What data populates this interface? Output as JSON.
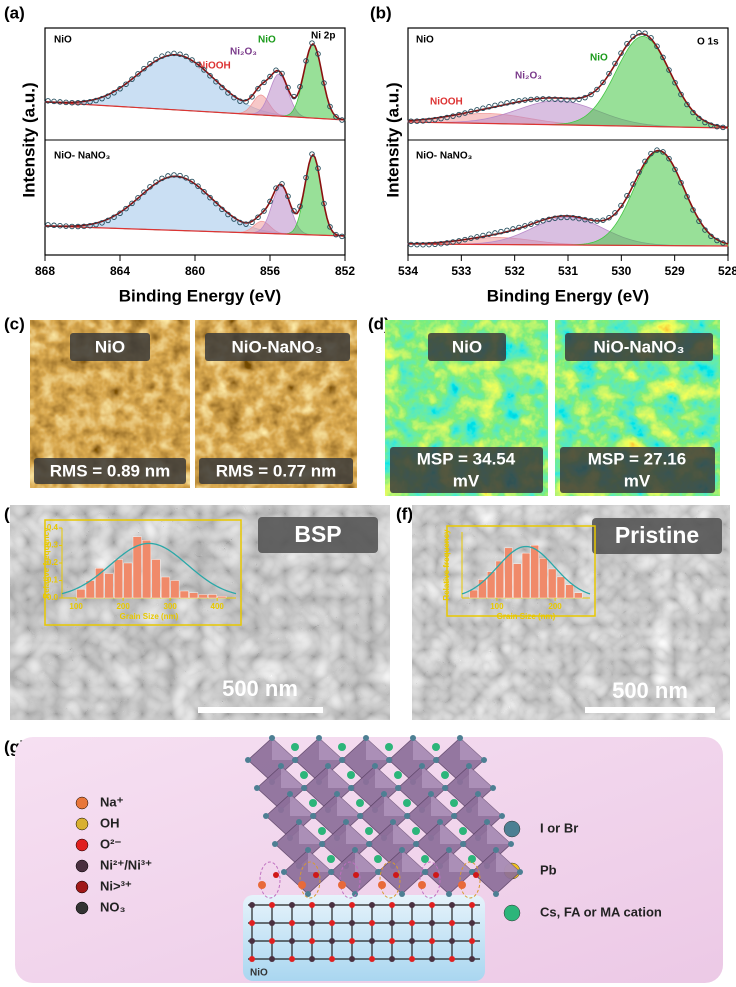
{
  "panel_a": {
    "label": "(a)",
    "top_sample": "NiO",
    "core_level": "Ni 2p",
    "peak_labels": [
      "NiOOH",
      "Ni₂O₃",
      "NiO"
    ],
    "bottom_sample": "NiO- NaNO₃",
    "y_label": "Intensity (a.u.)",
    "x_label": "Binding Energy (eV)",
    "xlim": [
      868,
      852
    ],
    "xticks": [
      868,
      864,
      860,
      856,
      852
    ]
  },
  "panel_b": {
    "label": "(b)",
    "top_sample": "NiO",
    "core_level": "O 1s",
    "peak_labels": [
      "NiOOH",
      "Ni₂O₃",
      "NiO"
    ],
    "bottom_sample": "NiO- NaNO₃",
    "y_label": "Intensity (a.u.)",
    "x_label": "Binding Energy (eV)",
    "xlim": [
      534,
      528
    ],
    "xticks": [
      534,
      533,
      532,
      531,
      530,
      529,
      528
    ]
  },
  "panel_c": {
    "label": "(c)",
    "samples": [
      "NiO",
      "NiO-NaNO₃"
    ],
    "values": [
      "RMS = 0.89 nm",
      "RMS = 0.77 nm"
    ]
  },
  "panel_d": {
    "label": "(d)",
    "samples": [
      "NiO",
      "NiO-NaNO₃"
    ],
    "values": [
      "MSP = 34.54",
      "MSP = 27.16"
    ],
    "unit": "mV"
  },
  "panel_e": {
    "label": "(e)",
    "sample": "BSP",
    "scale_bar": "500 nm",
    "inset": {
      "type": "bar",
      "y_label": "Relative frequency",
      "x_label": "Grain Size (nm)",
      "x": [
        110,
        130,
        150,
        170,
        190,
        210,
        230,
        250,
        270,
        290,
        310,
        330,
        350,
        370,
        390,
        410
      ],
      "values": [
        0.05,
        0.1,
        0.17,
        0.14,
        0.22,
        0.2,
        0.35,
        0.33,
        0.22,
        0.12,
        0.1,
        0.04,
        0.03,
        0.02,
        0.02,
        0.01
      ],
      "xlim": [
        70,
        440
      ],
      "ylim": [
        0,
        0.4
      ],
      "xticks": [
        100,
        200,
        300,
        400
      ],
      "yticks": [
        {
          "value": 0,
          "label": "0.0"
        },
        0.1,
        0.2,
        0.3,
        0.4
      ]
    }
  },
  "panel_f": {
    "label": "(f)",
    "sample": "Pristine",
    "scale_bar": "500 nm",
    "inset": {
      "type": "bar",
      "y_label": "Relative frequency",
      "x_label": "Grain Size (nm)",
      "x": [
        60,
        75,
        90,
        105,
        120,
        135,
        150,
        165,
        180,
        195,
        210,
        225,
        240
      ],
      "values": [
        0.03,
        0.07,
        0.1,
        0.14,
        0.19,
        0.13,
        0.17,
        0.2,
        0.15,
        0.11,
        0.08,
        0.05,
        0.02
      ],
      "xlim": [
        40,
        260
      ],
      "ylim": [
        0,
        0.25
      ],
      "xticks": [
        100,
        200
      ]
    }
  },
  "panel_g": {
    "label": "(g)",
    "left_legend": [
      "Na⁺",
      "OH",
      "O²⁻",
      "Ni²⁺/Ni³⁺",
      "Ni>³⁺",
      "NO₃"
    ],
    "right_legend": [
      "I or Br",
      "Pb",
      "Cs, FA or MA cation"
    ],
    "substrate": "NiO"
  }
}
